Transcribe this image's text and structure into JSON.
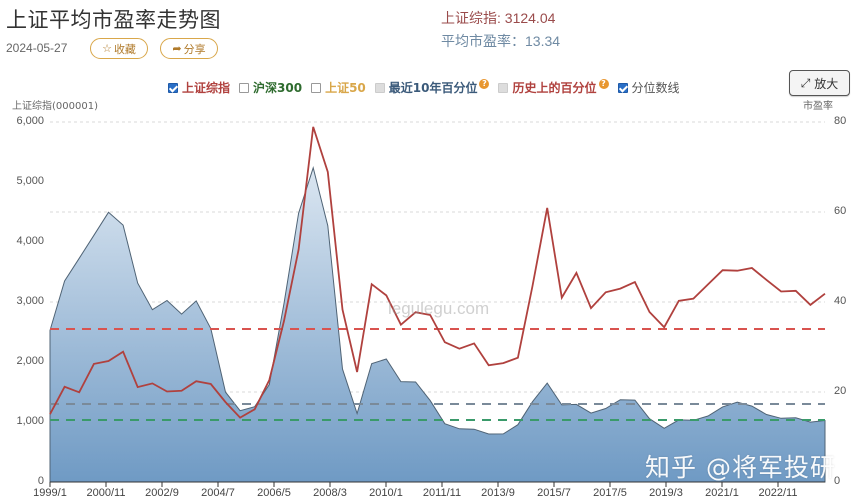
{
  "header": {
    "title": "上证平均市盈率走势图",
    "date": "2024-05-27",
    "favorite_label": "收藏",
    "share_label": "分享",
    "index_label": "上证综指: 3124.04",
    "pe_label": "平均市盈率：13.34"
  },
  "legend": {
    "items": [
      {
        "label": "上证综指",
        "checked": true,
        "color": "#b0413e"
      },
      {
        "label": "沪深300",
        "checked": false,
        "color": "#2e6b2e"
      },
      {
        "label": "上证50",
        "checked": false,
        "color": "#d9a74a"
      },
      {
        "label": "最近10年百分位",
        "checked": false,
        "disabled": true,
        "color": "#3b5a7a",
        "help": "?"
      },
      {
        "label": "历史上的百分位",
        "checked": false,
        "disabled": true,
        "color": "#b0413e",
        "help": "?"
      },
      {
        "label": "分位数线",
        "checked": true,
        "color": "#555555"
      }
    ]
  },
  "toolbar": {
    "zoom_label": "放大"
  },
  "axes": {
    "left_title": "上证综指(000001)",
    "right_title": "市盈率",
    "left_ticks": [
      "6,000",
      "5,000",
      "4,000",
      "3,000",
      "2,000",
      "1,000",
      "0"
    ],
    "right_ticks": [
      "80",
      "60",
      "40",
      "20",
      "0"
    ],
    "x_ticks": [
      "1999/1",
      "2000/11",
      "2002/9",
      "2004/7",
      "2006/5",
      "2008/3",
      "2010/1",
      "2011/11",
      "2013/9",
      "2015/7",
      "2017/5",
      "2019/3",
      "2021/1",
      "2022/11"
    ]
  },
  "watermarks": {
    "site": "legulegu.com",
    "author": "知乎 @将军投研"
  },
  "colors": {
    "index_line": "#b0413e",
    "pe_area_top": "#dbe6f1",
    "pe_area_bottom": "#6f9ac4",
    "pe_line": "#4f6375",
    "dash_red": "#d9534f",
    "dash_gray": "#7a8a99",
    "dash_green": "#3a9a6a"
  },
  "chart_data": {
    "type": "line",
    "title": "上证平均市盈率走势图",
    "xlabel": "",
    "ylabel": "上证综指(000001)",
    "ylabel_right": "市盈率",
    "ylim": [
      0,
      6000
    ],
    "ylim_right": [
      0,
      80
    ],
    "grid": true,
    "legend_position": "top",
    "x": [
      "1999/1",
      "1999/6",
      "2000/1",
      "2000/6",
      "2001/1",
      "2001/6",
      "2002/1",
      "2002/6",
      "2003/1",
      "2003/6",
      "2004/1",
      "2004/6",
      "2005/1",
      "2005/6",
      "2006/1",
      "2006/6",
      "2007/1",
      "2007/6",
      "2007/10",
      "2008/1",
      "2008/6",
      "2009/1",
      "2009/8",
      "2010/1",
      "2010/6",
      "2011/1",
      "2011/6",
      "2012/1",
      "2012/6",
      "2013/1",
      "2013/6",
      "2014/1",
      "2014/6",
      "2015/1",
      "2015/6",
      "2015/9",
      "2016/1",
      "2016/6",
      "2017/1",
      "2017/6",
      "2018/1",
      "2018/6",
      "2019/1",
      "2019/6",
      "2020/1",
      "2020/6",
      "2021/1",
      "2021/6",
      "2022/1",
      "2022/6",
      "2023/1",
      "2023/6",
      "2024/1",
      "2024/5"
    ],
    "series": [
      {
        "name": "上证综指",
        "axis": "left",
        "values": [
          1130,
          1600,
          1520,
          2000,
          2050,
          2200,
          1600,
          1650,
          1500,
          1500,
          1650,
          1600,
          1300,
          1050,
          1200,
          1700,
          2700,
          3900,
          5950,
          5200,
          2900,
          1850,
          3300,
          3100,
          2600,
          2800,
          2750,
          2300,
          2200,
          2300,
          1950,
          2000,
          2100,
          3300,
          4600,
          3100,
          3500,
          2900,
          3150,
          3200,
          3300,
          2800,
          2550,
          3000,
          3050,
          3300,
          3550,
          3550,
          3600,
          3400,
          3200,
          3200,
          2950,
          3124
        ]
      },
      {
        "name": "平均市盈率",
        "axis": "right",
        "values": [
          34,
          45,
          50,
          55,
          60,
          57,
          44,
          38,
          40,
          37,
          40,
          34,
          20,
          16,
          17,
          22,
          40,
          60,
          70,
          57,
          25,
          15,
          26,
          27,
          22,
          22,
          18,
          13,
          12,
          12,
          11,
          11,
          13,
          18,
          22,
          17,
          17,
          15,
          16,
          18,
          18,
          14,
          12,
          14,
          14,
          15,
          17,
          18,
          17,
          15,
          14,
          14,
          13,
          13.34
        ]
      }
    ],
    "reference_lines": [
      {
        "name": "历史分位 (红)",
        "axis": "left",
        "value": 2550,
        "color": "#d9534f",
        "style": "dashed"
      },
      {
        "name": "分位数线 (灰)",
        "axis": "right",
        "value": 17.3,
        "color": "#7a8a99",
        "style": "dashed"
      },
      {
        "name": "分位数线 (绿)",
        "axis": "right",
        "value": 13.8,
        "color": "#3a9a6a",
        "style": "dashed"
      }
    ],
    "current": {
      "index": 3124.04,
      "pe": 13.34,
      "date": "2024-05-27"
    }
  }
}
